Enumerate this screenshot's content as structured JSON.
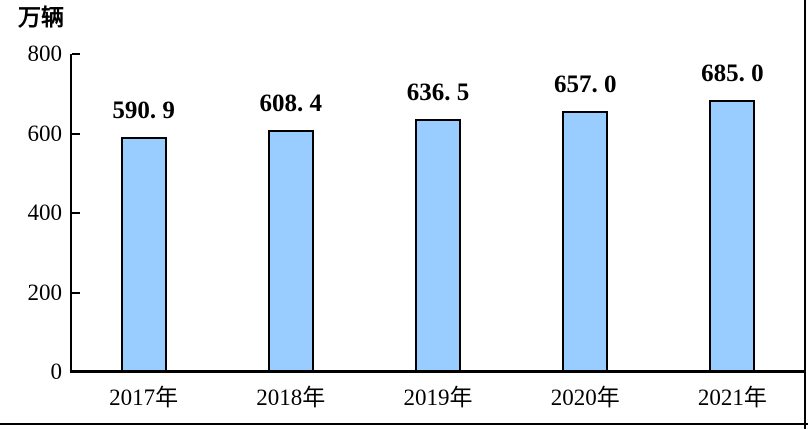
{
  "page": {
    "background": "#ffffff",
    "border_color": "#000000"
  },
  "chart_data": {
    "type": "bar",
    "unit_label": "万辆",
    "categories": [
      "2017年",
      "2018年",
      "2019年",
      "2020年",
      "2021年"
    ],
    "values": [
      590.9,
      608.4,
      636.5,
      657.0,
      685.0
    ],
    "value_labels": [
      "590. 9",
      "608. 4",
      "636. 5",
      "657. 0",
      "685. 0"
    ],
    "yticks": [
      0,
      200,
      400,
      600,
      800
    ],
    "ytick_labels": [
      "0",
      "200",
      "400",
      "600",
      "800"
    ],
    "ylim": [
      0,
      800
    ],
    "xlabel": "",
    "ylabel": "万辆",
    "grid": false,
    "legend": "none",
    "bar_fill": "#99CCFF",
    "bar_border": "#000000",
    "axis_color": "#000000",
    "text_color": "#000000"
  }
}
